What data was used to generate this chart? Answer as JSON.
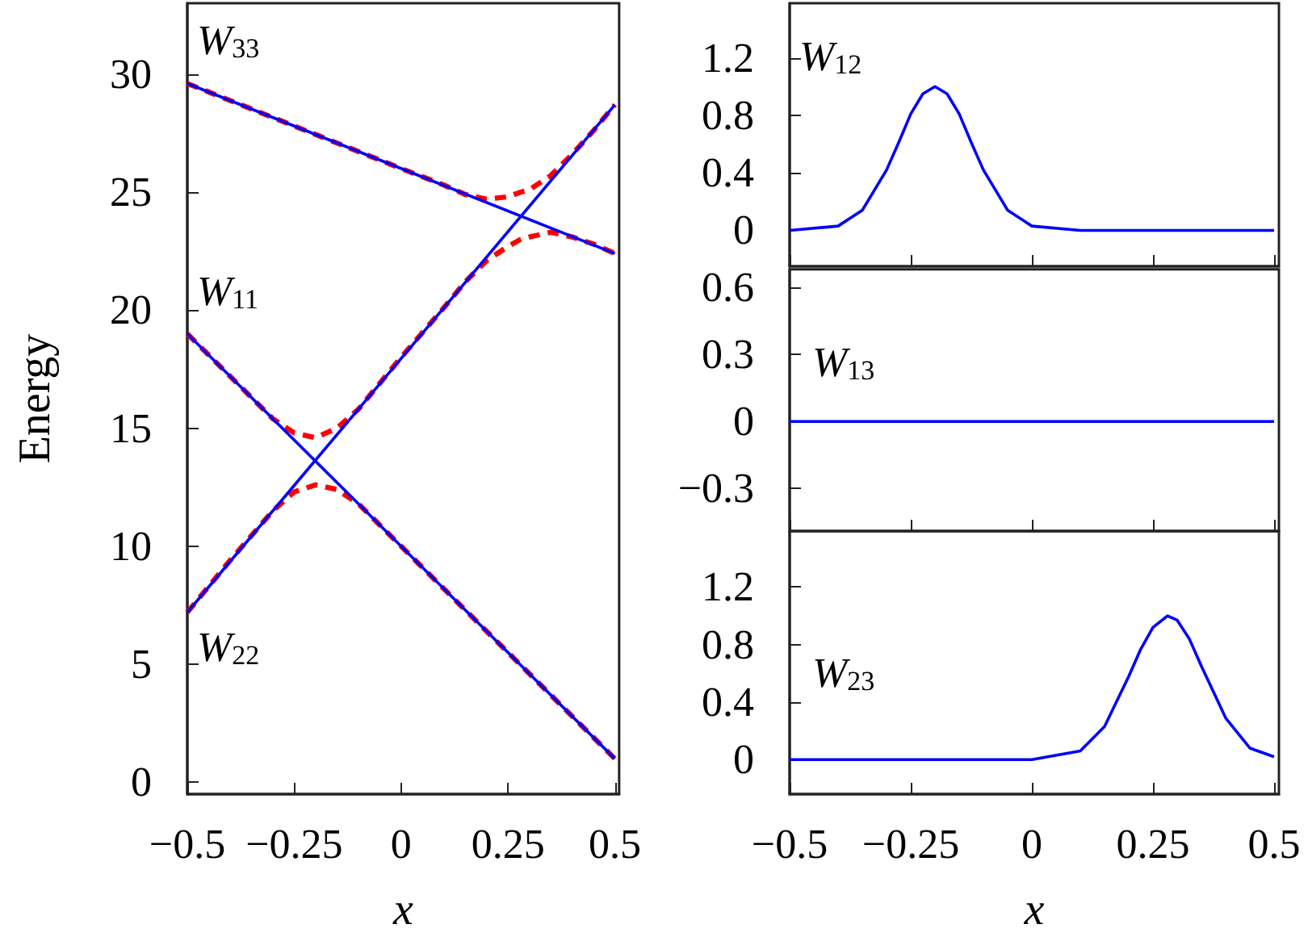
{
  "chart_data": [
    {
      "type": "line",
      "xlabel": "x",
      "ylabel": "Energy",
      "xlim": [
        -0.5,
        0.51
      ],
      "xticks": [
        -0.5,
        -0.25,
        0,
        0.25,
        0.5
      ],
      "ylim": [
        -0.5,
        33
      ],
      "yticks": [
        0,
        5,
        10,
        15,
        20,
        25,
        30
      ],
      "grid": false,
      "legend": false,
      "marker": "none",
      "series": [
        {
          "name": "W$_{33}$",
          "color": "#0000ff",
          "x": [
            -0.5,
            0.5
          ],
          "values": [
            29.6,
            22.4
          ]
        },
        {
          "name": "W$_{11}$",
          "color": "#0000ff",
          "x": [
            -0.5,
            0.5
          ],
          "values": [
            19.0,
            1.0
          ]
        },
        {
          "name": "W$_{22}$",
          "color": "#0000ff",
          "x": [
            -0.5,
            0.5
          ],
          "values": [
            7.2,
            28.7
          ]
        },
        {
          "color": "#ff0000",
          "line_style": "dashed",
          "x": [
            -0.5,
            -0.4,
            -0.3,
            -0.25,
            -0.2,
            -0.15,
            -0.1,
            -0.05,
            0,
            0.1,
            0.2,
            0.3,
            0.4,
            0.5
          ],
          "values": [
            7.2,
            9.4,
            11.5,
            12.3,
            12.6,
            12.4,
            11.8,
            10.9,
            10.0,
            8.2,
            6.4,
            4.6,
            2.8,
            1.0
          ]
        },
        {
          "color": "#ff0000",
          "line_style": "dashed",
          "x": [
            -0.5,
            -0.4,
            -0.3,
            -0.25,
            -0.2,
            -0.15,
            -0.1,
            -0.05,
            0,
            0.1,
            0.15,
            0.2,
            0.25,
            0.28,
            0.3,
            0.35,
            0.4,
            0.45,
            0.5
          ],
          "values": [
            19.0,
            17.2,
            15.4,
            14.8,
            14.6,
            15.0,
            15.8,
            16.9,
            18.0,
            20.1,
            21.2,
            22.1,
            22.7,
            23.0,
            23.1,
            23.3,
            23.1,
            22.8,
            22.4
          ]
        },
        {
          "color": "#ff0000",
          "line_style": "dashed",
          "x": [
            -0.5,
            -0.25,
            0,
            0.1,
            0.15,
            0.2,
            0.25,
            0.28,
            0.3,
            0.35,
            0.4,
            0.45,
            0.5
          ],
          "values": [
            29.6,
            27.8,
            26.0,
            25.3,
            24.9,
            24.7,
            24.8,
            25.0,
            25.1,
            25.7,
            26.6,
            27.6,
            28.7
          ]
        }
      ]
    },
    {
      "type": "line",
      "xlim": [
        -0.5,
        0.51
      ],
      "xticks": [
        -0.5,
        -0.25,
        0,
        0.25,
        0.5
      ],
      "ylim": [
        -0.25,
        1.58
      ],
      "yticks": [
        0,
        0.4,
        0.8,
        1.2
      ],
      "tick_labels": "y",
      "grid": false,
      "legend": false,
      "marker": "none",
      "series": [
        {
          "name": "W$_{12}$",
          "color": "#0000ff",
          "x": [
            -0.5,
            -0.4,
            -0.35,
            -0.3,
            -0.275,
            -0.25,
            -0.225,
            -0.2,
            -0.175,
            -0.15,
            -0.125,
            -0.1,
            -0.05,
            0,
            0.1,
            0.5
          ],
          "values": [
            0,
            0.03,
            0.14,
            0.42,
            0.61,
            0.81,
            0.95,
            1,
            0.95,
            0.81,
            0.61,
            0.42,
            0.14,
            0.03,
            0,
            0
          ]
        }
      ]
    },
    {
      "type": "line",
      "xlim": [
        -0.5,
        0.51
      ],
      "xticks": [
        -0.5,
        -0.25,
        0,
        0.25,
        0.5
      ],
      "ylim": [
        -0.49,
        0.68
      ],
      "yticks": [
        -0.3,
        0,
        0.3,
        0.6
      ],
      "tick_labels": "y",
      "grid": false,
      "legend": false,
      "marker": "none",
      "series": [
        {
          "name": "W$_{13}$",
          "color": "#0000ff",
          "x": [
            -0.5,
            0.5
          ],
          "values": [
            0,
            0
          ]
        }
      ]
    },
    {
      "type": "line",
      "xlabel": "x",
      "xlim": [
        -0.5,
        0.51
      ],
      "xticks": [
        -0.5,
        -0.25,
        0,
        0.25,
        0.5
      ],
      "ylim": [
        -0.24,
        1.59
      ],
      "yticks": [
        0,
        0.4,
        0.8,
        1.2
      ],
      "grid": false,
      "legend": false,
      "marker": "none",
      "series": [
        {
          "name": "W$_{23}$",
          "color": "#0000ff",
          "x": [
            -0.5,
            0,
            0.1,
            0.15,
            0.2,
            0.225,
            0.25,
            0.28,
            0.3,
            0.325,
            0.35,
            0.4,
            0.45,
            0.5
          ],
          "values": [
            0,
            0,
            0.06,
            0.23,
            0.58,
            0.77,
            0.92,
            1,
            0.97,
            0.84,
            0.65,
            0.29,
            0.08,
            0.02
          ]
        }
      ]
    }
  ]
}
